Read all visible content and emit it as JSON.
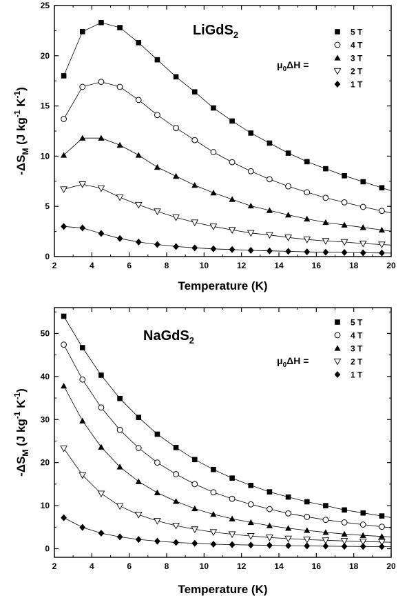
{
  "chart_data": [
    {
      "type": "line",
      "title": "LiGdS",
      "title_sub": "2",
      "field_label": {
        "main": "μ",
        "sub": "0",
        "rest": "ΔH ="
      },
      "xlabel": "Temperature (K)",
      "ylabel": "-ΔS_M (J kg^-1 K^-1)",
      "ylabel_parts": {
        "pre": "-ΔS",
        "sub": "M",
        "mid1": " (J kg",
        "sup1": "-1",
        "mid2": " K",
        "sup2": "-1",
        "post": ")"
      },
      "xlim": [
        2,
        20
      ],
      "ylim": [
        0,
        25
      ],
      "xticks": [
        "2",
        "4",
        "6",
        "8",
        "10",
        "12",
        "14",
        "16",
        "18",
        "20"
      ],
      "yticks": [
        "0",
        "5",
        "10",
        "15",
        "20",
        "25"
      ],
      "legend_position": "top-right",
      "x": [
        2.5,
        3.5,
        4.5,
        5.5,
        6.5,
        7.5,
        8.5,
        9.5,
        10.5,
        11.5,
        12.5,
        13.5,
        14.5,
        15.5,
        16.5,
        17.5,
        18.5,
        19.5
      ],
      "series": [
        {
          "name": "5 T",
          "marker": "square",
          "values": [
            18.0,
            22.4,
            23.3,
            22.8,
            21.3,
            19.6,
            17.9,
            16.4,
            14.8,
            13.5,
            12.3,
            11.3,
            10.3,
            9.45,
            8.75,
            8.05,
            7.45,
            6.85
          ]
        },
        {
          "name": "4 T",
          "marker": "circle-open",
          "values": [
            13.7,
            16.9,
            17.4,
            16.9,
            15.6,
            14.1,
            12.8,
            11.6,
            10.4,
            9.4,
            8.5,
            7.7,
            7.0,
            6.4,
            5.85,
            5.4,
            4.95,
            4.55
          ]
        },
        {
          "name": "3 T",
          "marker": "triangle-up",
          "values": [
            10.1,
            11.8,
            11.8,
            11.1,
            10.1,
            8.9,
            8.0,
            7.1,
            6.35,
            5.7,
            5.05,
            4.6,
            4.15,
            3.75,
            3.4,
            3.15,
            2.9,
            2.65
          ]
        },
        {
          "name": "2 T",
          "marker": "triangle-down-open",
          "values": [
            6.7,
            7.2,
            6.8,
            5.9,
            5.15,
            4.5,
            3.9,
            3.4,
            3.0,
            2.65,
            2.35,
            2.15,
            1.9,
            1.7,
            1.55,
            1.45,
            1.3,
            1.2
          ]
        },
        {
          "name": "1 T",
          "marker": "diamond",
          "values": [
            3.0,
            2.85,
            2.3,
            1.8,
            1.45,
            1.2,
            1.0,
            0.87,
            0.77,
            0.7,
            0.62,
            0.57,
            0.52,
            0.47,
            0.43,
            0.41,
            0.38,
            0.36
          ]
        }
      ]
    },
    {
      "type": "line",
      "title": "NaGdS",
      "title_sub": "2",
      "field_label": {
        "main": "μ",
        "sub": "0",
        "rest": "ΔH ="
      },
      "xlabel": "Temperature (K)",
      "ylabel": "-ΔS_M (J kg^-1 K^-1)",
      "ylabel_parts": {
        "pre": "-ΔS",
        "sub": "M",
        "mid1": " (J kg",
        "sup1": "-1",
        "mid2": " K",
        "sup2": "-1",
        "post": ")"
      },
      "xlim": [
        2,
        20
      ],
      "ylim": [
        -2,
        56
      ],
      "xticks": [
        "2",
        "4",
        "6",
        "8",
        "10",
        "12",
        "14",
        "16",
        "18",
        "20"
      ],
      "yticks": [
        "0",
        "10",
        "20",
        "30",
        "40",
        "50"
      ],
      "legend_position": "top-right",
      "x": [
        2.5,
        3.5,
        4.5,
        5.5,
        6.5,
        7.5,
        8.5,
        9.5,
        10.5,
        11.5,
        12.5,
        13.5,
        14.5,
        15.5,
        16.5,
        17.5,
        18.5,
        19.5
      ],
      "series": [
        {
          "name": "5 T",
          "marker": "square",
          "values": [
            54.0,
            46.7,
            40.3,
            34.9,
            30.5,
            26.6,
            23.5,
            20.7,
            18.4,
            16.4,
            14.7,
            13.2,
            12.0,
            10.9,
            10.0,
            9.0,
            8.3,
            7.6
          ]
        },
        {
          "name": "4 T",
          "marker": "circle-open",
          "values": [
            47.4,
            39.3,
            32.8,
            27.6,
            23.4,
            20.0,
            17.3,
            15.0,
            13.1,
            11.6,
            10.3,
            9.2,
            8.2,
            7.4,
            6.7,
            6.1,
            5.6,
            5.1
          ]
        },
        {
          "name": "3 T",
          "marker": "triangle-up",
          "values": [
            37.8,
            29.7,
            23.6,
            19.0,
            15.6,
            13.0,
            11.0,
            9.3,
            8.0,
            6.95,
            6.1,
            5.35,
            4.75,
            4.25,
            3.8,
            3.4,
            3.1,
            2.85
          ]
        },
        {
          "name": "2 T",
          "marker": "triangle-down-open",
          "values": [
            23.3,
            17.1,
            12.8,
            9.9,
            7.9,
            6.45,
            5.35,
            4.5,
            3.85,
            3.35,
            2.95,
            2.6,
            2.35,
            2.1,
            1.95,
            1.8,
            1.65,
            1.55
          ]
        },
        {
          "name": "1 T",
          "marker": "diamond",
          "values": [
            7.2,
            4.95,
            3.6,
            2.75,
            2.15,
            1.75,
            1.45,
            1.25,
            1.05,
            0.95,
            0.85,
            0.78,
            0.7,
            0.65,
            0.6,
            0.55,
            0.52,
            0.48
          ]
        }
      ]
    }
  ]
}
